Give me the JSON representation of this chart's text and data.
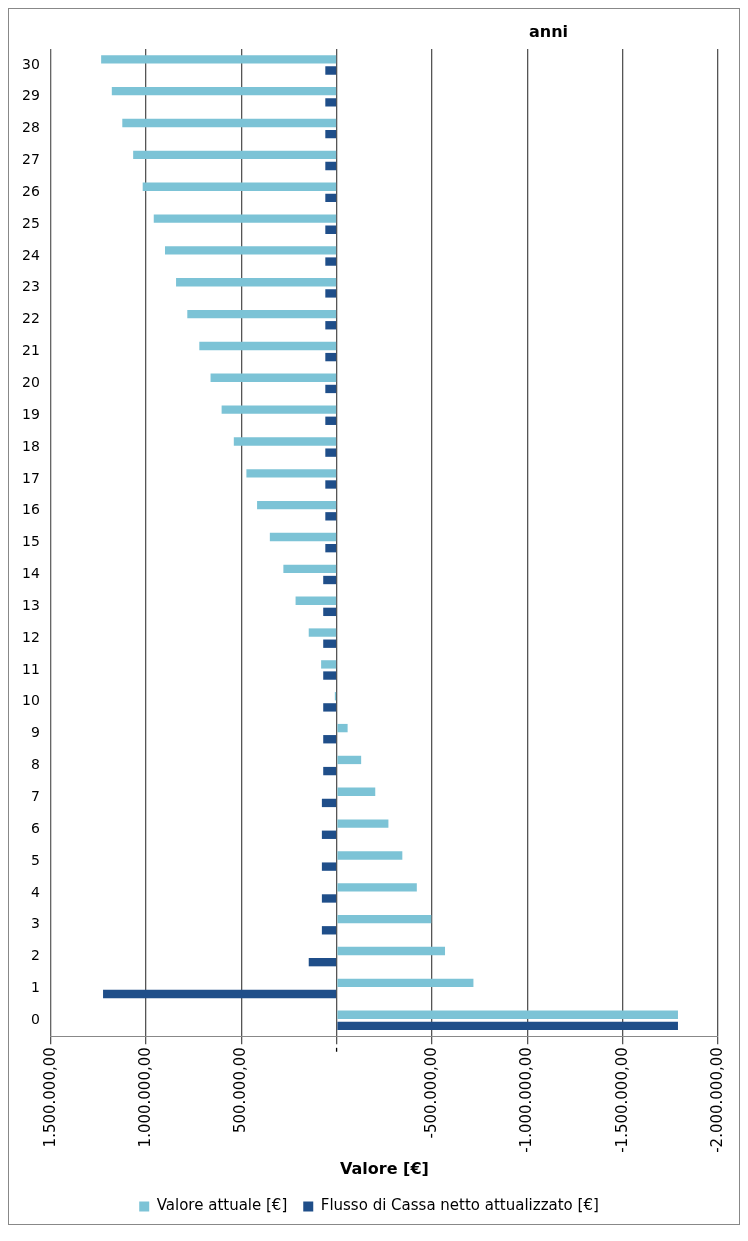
{
  "chart_data": {
    "type": "bar",
    "orientation": "horizontal",
    "ylabel": "anni",
    "xlabel": "Valore [€]",
    "categories": [
      "30",
      "29",
      "28",
      "27",
      "26",
      "25",
      "24",
      "23",
      "22",
      "21",
      "20",
      "19",
      "18",
      "17",
      "16",
      "15",
      "14",
      "13",
      "12",
      "11",
      "10",
      "9",
      "8",
      "7",
      "6",
      "5",
      "4",
      "3",
      "2",
      "1",
      "0"
    ],
    "series": [
      {
        "name": "Valore attuale [€]",
        "color": "#7cc3d6",
        "values": [
          1236000,
          1180000,
          1125000,
          1068000,
          1018000,
          960000,
          901000,
          843000,
          784000,
          721000,
          662000,
          604000,
          540000,
          474000,
          418000,
          351000,
          280000,
          216000,
          147000,
          82000,
          10000,
          -57000,
          -128000,
          -202000,
          -271000,
          -344000,
          -420000,
          -496000,
          -568000,
          -717000,
          -1790000
        ]
      },
      {
        "name": "Flusso di Cassa netto attualizzato [€]",
        "color": "#1f4e89",
        "values": [
          60000,
          60000,
          60000,
          60000,
          60000,
          60000,
          60000,
          60000,
          60000,
          60000,
          60000,
          60000,
          60000,
          60000,
          60000,
          60000,
          71000,
          71000,
          71000,
          71000,
          71000,
          71000,
          71000,
          78000,
          78000,
          78000,
          78000,
          78000,
          147000,
          1226000,
          -1790000
        ]
      }
    ],
    "xlim": [
      1500000,
      -2000000
    ],
    "xticks": [
      {
        "value": 1500000,
        "label": "1.500.000,00"
      },
      {
        "value": 1000000,
        "label": "1.000.000,00"
      },
      {
        "value": 500000,
        "label": "500.000,00"
      },
      {
        "value": 0,
        "label": "-"
      },
      {
        "value": -500000,
        "label": "-500.000,00"
      },
      {
        "value": -1000000,
        "label": "-1.000.000,00"
      },
      {
        "value": -1500000,
        "label": "-1.500.000,00"
      },
      {
        "value": -2000000,
        "label": "-2.000.000,00"
      }
    ],
    "grid": "x",
    "legend": "bottom"
  }
}
